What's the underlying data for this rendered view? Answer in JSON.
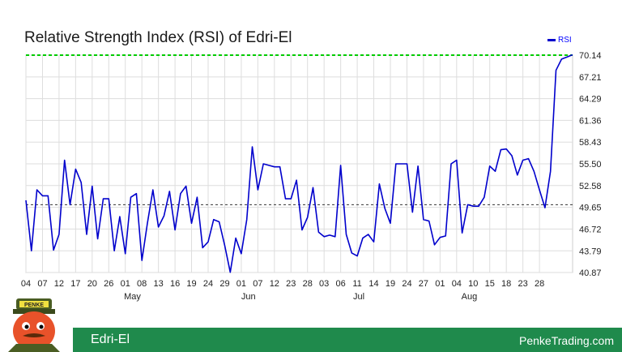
{
  "chart_data": {
    "type": "line",
    "title": "Relative Strength Index (RSI) of Edri-El",
    "series": [
      {
        "name": "RSI",
        "color": "#0000cc",
        "values": [
          50.6,
          43.8,
          52.0,
          51.2,
          51.2,
          43.9,
          46.0,
          56.0,
          50.0,
          54.8,
          53.0,
          46.0,
          52.5,
          45.4,
          50.8,
          50.8,
          43.8,
          48.4,
          43.4,
          51.0,
          51.5,
          42.5,
          47.5,
          52.0,
          47.0,
          48.5,
          51.8,
          46.6,
          51.5,
          52.5,
          47.5,
          51.0,
          44.2,
          45.0,
          48.0,
          47.7,
          44.5,
          40.9,
          45.5,
          43.4,
          48.0,
          57.8,
          52.0,
          55.5,
          55.3,
          55.1,
          55.1,
          50.8,
          50.8,
          53.3,
          46.6,
          48.3,
          52.3,
          46.3,
          45.7,
          45.9,
          45.7,
          55.3,
          46.0,
          43.5,
          43.1,
          45.5,
          46.0,
          45.0,
          52.8,
          49.5,
          47.5,
          55.5,
          55.5,
          55.5,
          49.0,
          55.2,
          48.0,
          47.8,
          44.6,
          45.6,
          45.8,
          55.5,
          56.0,
          46.2,
          50.0,
          49.8,
          49.8,
          51.0,
          55.2,
          54.5,
          57.4,
          57.5,
          56.6,
          54.0,
          56.0,
          56.2,
          54.5,
          52.0,
          49.6,
          54.5,
          68.1,
          69.6,
          69.9,
          70.2
        ]
      }
    ],
    "yticks": [
      "70.14",
      "67.21",
      "64.29",
      "61.36",
      "58.43",
      "55.50",
      "52.58",
      "49.65",
      "46.72",
      "43.79",
      "40.87"
    ],
    "ylim": [
      40.87,
      70.14
    ],
    "overbought_line": 70.14,
    "midline": 50.0,
    "xticks": [
      {
        "i": 0,
        "label": "04"
      },
      {
        "i": 3,
        "label": "07"
      },
      {
        "i": 6,
        "label": "12"
      },
      {
        "i": 9,
        "label": "17"
      },
      {
        "i": 12,
        "label": "20"
      },
      {
        "i": 15,
        "label": "26"
      },
      {
        "i": 18,
        "label": "01"
      },
      {
        "i": 21,
        "label": "08"
      },
      {
        "i": 24,
        "label": "13"
      },
      {
        "i": 27,
        "label": "16"
      },
      {
        "i": 30,
        "label": "19"
      },
      {
        "i": 33,
        "label": "24"
      },
      {
        "i": 36,
        "label": "29"
      },
      {
        "i": 39,
        "label": "01"
      },
      {
        "i": 42,
        "label": "07"
      },
      {
        "i": 45,
        "label": "12"
      },
      {
        "i": 48,
        "label": "23"
      },
      {
        "i": 51,
        "label": "28"
      },
      {
        "i": 54,
        "label": "03"
      },
      {
        "i": 57,
        "label": "06"
      },
      {
        "i": 60,
        "label": "11"
      },
      {
        "i": 63,
        "label": "14"
      },
      {
        "i": 66,
        "label": "19"
      },
      {
        "i": 69,
        "label": "24"
      },
      {
        "i": 72,
        "label": "27"
      },
      {
        "i": 75,
        "label": "01"
      },
      {
        "i": 78,
        "label": "04"
      },
      {
        "i": 81,
        "label": "10"
      },
      {
        "i": 84,
        "label": "15"
      },
      {
        "i": 87,
        "label": "18"
      },
      {
        "i": 90,
        "label": "23"
      },
      {
        "i": 93,
        "label": "28"
      }
    ],
    "month_labels": [
      {
        "i": 19,
        "label": "May"
      },
      {
        "i": 40,
        "label": "Jun"
      },
      {
        "i": 60,
        "label": "Jul"
      },
      {
        "i": 80,
        "label": "Aug"
      }
    ],
    "grid": true,
    "legend_position": "top-right"
  },
  "footer": {
    "symbol": "Edri-El",
    "site": "PenkeTrading.com",
    "color": "#1f8a4c"
  },
  "mascot": {
    "hat_text": "PENKE"
  }
}
